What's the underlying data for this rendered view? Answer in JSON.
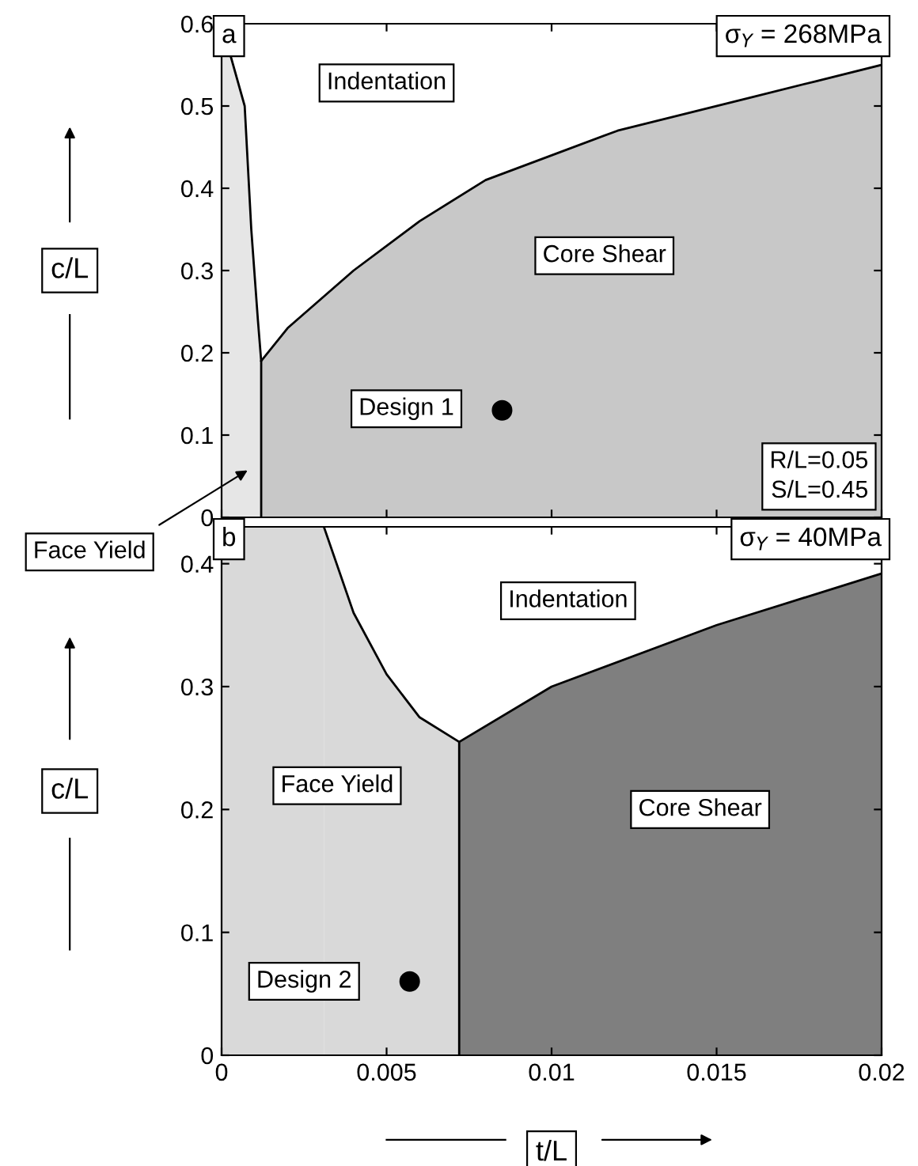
{
  "chart_data": [
    {
      "type": "area",
      "title": "a",
      "subtitle": "σ$_{Y}$ = 268MPa",
      "ylabel": "c/L",
      "xlim": [
        0,
        0.02
      ],
      "ylim": [
        0,
        0.6
      ],
      "yticks": [
        0,
        0.1,
        0.2,
        0.3,
        0.4,
        0.5,
        0.6
      ],
      "xticks": [
        0,
        0.005,
        0.01,
        0.015,
        0.02
      ],
      "tick_labels": "y",
      "grid": false,
      "series": [
        {
          "color": "#e6e6e6",
          "x": [
            0,
            0.0007,
            0.0009,
            0.0011,
            0.0012,
            0.0012
          ],
          "values": [
            0.6,
            0.5,
            0.35,
            0.24,
            0.19,
            0
          ]
        },
        {
          "color": "#c8c8c8",
          "x": [
            0.0012,
            0.002,
            0.004,
            0.006,
            0.008,
            0.01,
            0.012,
            0.014,
            0.016,
            0.018,
            0.02
          ],
          "values": [
            0.19,
            0.23,
            0.3,
            0.36,
            0.41,
            0.44,
            0.47,
            0.49,
            0.51,
            0.53,
            0.55
          ]
        },
        {
          "type": "scatter",
          "color": "#000000",
          "x": [
            0.0085
          ],
          "values": [
            0.13
          ]
        }
      ],
      "annotations": [
        "Indentation",
        "Core Shear",
        "Design 1",
        "R/L=0.05\nS/L=0.45",
        "Face Yield"
      ]
    },
    {
      "type": "area",
      "title": "b",
      "subtitle": "σ$_{Y}$ = 40MPa",
      "xlabel": "t/L",
      "ylabel": "c/L",
      "xlim": [
        0,
        0.02
      ],
      "ylim": [
        0,
        0.43
      ],
      "bands": [
        {
          "axis": "x",
          "from": 0,
          "to": 0.0031,
          "color": "#d9d9d9"
        }
      ],
      "xticks": [
        0,
        0.005,
        0.01,
        0.015,
        0.02
      ],
      "yticks": [
        0,
        0.1,
        0.2,
        0.3,
        0.4
      ],
      "grid": false,
      "series": [
        {
          "color": "#d9d9d9",
          "x": [
            0.0031,
            0.004,
            0.005,
            0.006,
            0.0072,
            0.0072
          ],
          "values": [
            0.43,
            0.36,
            0.31,
            0.275,
            0.255,
            0
          ]
        },
        {
          "color": "#7f7f7f",
          "x": [
            0.0072,
            0.01,
            0.015,
            0.02
          ],
          "values": [
            0.255,
            0.3,
            0.35,
            0.392
          ]
        },
        {
          "type": "scatter",
          "color": "#000000",
          "x": [
            0.0057
          ],
          "values": [
            0.06
          ]
        }
      ],
      "annotations": [
        "Indentation",
        "Face Yield",
        "Core Shear",
        "Design 2"
      ]
    }
  ]
}
